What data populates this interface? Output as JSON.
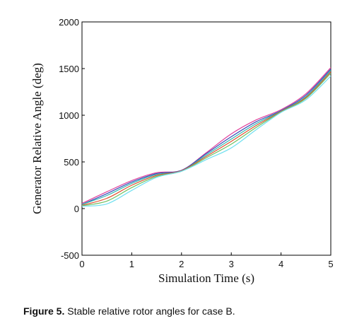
{
  "chart_data": {
    "type": "line",
    "title": "",
    "xlabel": "Simulation Time (s)",
    "ylabel": "Generator Relative Angle (deg)",
    "xlim": [
      0,
      5
    ],
    "ylim": [
      -500,
      2000
    ],
    "xticks": [
      0,
      1,
      2,
      3,
      4,
      5
    ],
    "yticks": [
      -500,
      0,
      500,
      1000,
      1500,
      2000
    ],
    "xtick_labels": [
      "0",
      "1",
      "2",
      "3",
      "4",
      "5"
    ],
    "ytick_labels": [
      "-500",
      "0",
      "500",
      "1000",
      "1500",
      "2000"
    ],
    "grid": false,
    "legend": "none",
    "x": [
      0,
      0.5,
      1,
      1.5,
      2,
      2.5,
      3,
      3.5,
      4,
      4.5,
      5
    ],
    "series": [
      {
        "color": "#e0409a",
        "values": [
          55,
          180,
          300,
          385,
          410,
          600,
          800,
          950,
          1060,
          1230,
          1510
        ]
      },
      {
        "color": "#3a4ab8",
        "values": [
          45,
          160,
          285,
          375,
          410,
          590,
          770,
          930,
          1050,
          1215,
          1495
        ]
      },
      {
        "color": "#30b8b0",
        "values": [
          45,
          140,
          270,
          365,
          405,
          575,
          745,
          910,
          1045,
          1200,
          1480
        ]
      },
      {
        "color": "#e05030",
        "values": [
          35,
          110,
          250,
          355,
          405,
          560,
          720,
          890,
          1040,
          1190,
          1465
        ]
      },
      {
        "color": "#70c060",
        "values": [
          30,
          80,
          225,
          345,
          400,
          545,
          690,
          870,
          1035,
          1180,
          1450
        ]
      },
      {
        "color": "#70e0f0",
        "values": [
          25,
          50,
          195,
          335,
          400,
          525,
          650,
          845,
          1030,
          1165,
          1420
        ]
      }
    ]
  },
  "caption": {
    "label": "Figure 5.",
    "text": " Stable relative rotor angles for case B."
  }
}
